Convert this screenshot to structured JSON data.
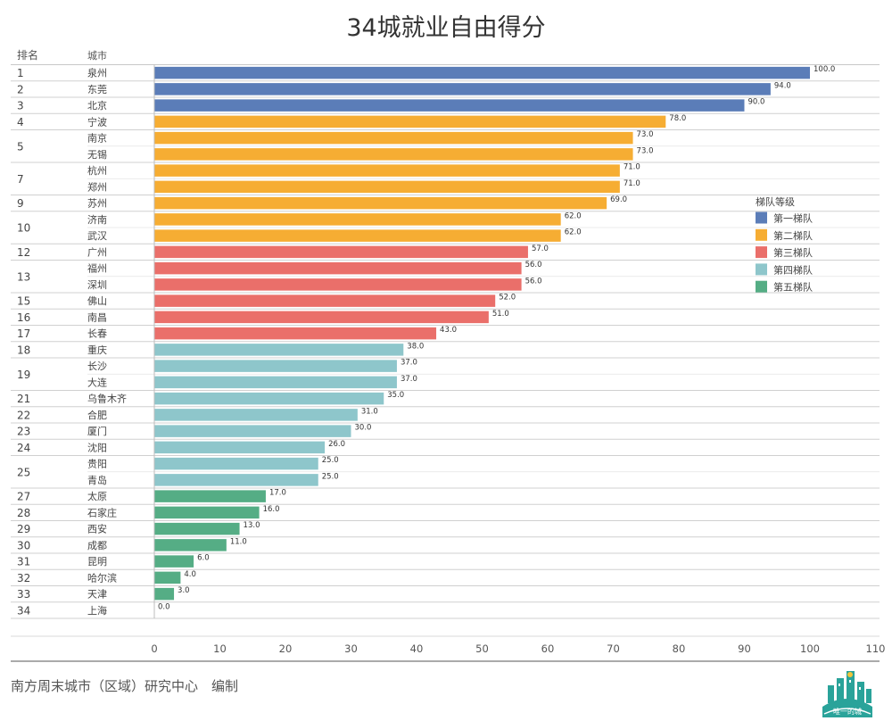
{
  "page": {
    "footer": "南方周末城市（区域）研究中心　编制",
    "logo_text": "唯一的城"
  },
  "chart_data": {
    "type": "bar",
    "orientation": "horizontal",
    "title": "34城就业自由得分",
    "columns": [
      "排名",
      "城市"
    ],
    "xlim": [
      0,
      110
    ],
    "xticks": [
      0,
      10,
      20,
      30,
      40,
      50,
      60,
      70,
      80,
      90,
      100,
      110
    ],
    "legend": {
      "title": "梯队等级",
      "placement": "right",
      "items": [
        {
          "name": "第一梯队",
          "color": "#5b7db8"
        },
        {
          "name": "第二梯队",
          "color": "#f6ad33"
        },
        {
          "name": "第三梯队",
          "color": "#ea6f6a"
        },
        {
          "name": "第四梯队",
          "color": "#8ec6cb"
        },
        {
          "name": "第五梯队",
          "color": "#55ad85"
        }
      ]
    },
    "groups": [
      {
        "rank": "1",
        "tier": 0,
        "items": [
          {
            "city": "泉州",
            "value": 100.0,
            "label": "100.0"
          }
        ]
      },
      {
        "rank": "2",
        "tier": 0,
        "items": [
          {
            "city": "东莞",
            "value": 94.0,
            "label": "94.0"
          }
        ]
      },
      {
        "rank": "3",
        "tier": 0,
        "items": [
          {
            "city": "北京",
            "value": 90.0,
            "label": "90.0"
          }
        ]
      },
      {
        "rank": "4",
        "tier": 1,
        "items": [
          {
            "city": "宁波",
            "value": 78.0,
            "label": "78.0"
          }
        ]
      },
      {
        "rank": "5",
        "tier": 1,
        "items": [
          {
            "city": "南京",
            "value": 73.0,
            "label": "73.0"
          },
          {
            "city": "无锡",
            "value": 73.0,
            "label": "73.0"
          }
        ]
      },
      {
        "rank": "7",
        "tier": 1,
        "items": [
          {
            "city": "杭州",
            "value": 71.0,
            "label": "71.0"
          },
          {
            "city": "郑州",
            "value": 71.0,
            "label": "71.0"
          }
        ]
      },
      {
        "rank": "9",
        "tier": 1,
        "items": [
          {
            "city": "苏州",
            "value": 69.0,
            "label": "69.0"
          }
        ]
      },
      {
        "rank": "10",
        "tier": 1,
        "items": [
          {
            "city": "济南",
            "value": 62.0,
            "label": "62.0"
          },
          {
            "city": "武汉",
            "value": 62.0,
            "label": "62.0"
          }
        ]
      },
      {
        "rank": "12",
        "tier": 2,
        "items": [
          {
            "city": "广州",
            "value": 57.0,
            "label": "57.0"
          }
        ]
      },
      {
        "rank": "13",
        "tier": 2,
        "items": [
          {
            "city": "福州",
            "value": 56.0,
            "label": "56.0"
          },
          {
            "city": "深圳",
            "value": 56.0,
            "label": "56.0"
          }
        ]
      },
      {
        "rank": "15",
        "tier": 2,
        "items": [
          {
            "city": "佛山",
            "value": 52.0,
            "label": "52.0"
          }
        ]
      },
      {
        "rank": "16",
        "tier": 2,
        "items": [
          {
            "city": "南昌",
            "value": 51.0,
            "label": "51.0"
          }
        ]
      },
      {
        "rank": "17",
        "tier": 2,
        "items": [
          {
            "city": "长春",
            "value": 43.0,
            "label": "43.0"
          }
        ]
      },
      {
        "rank": "18",
        "tier": 3,
        "items": [
          {
            "city": "重庆",
            "value": 38.0,
            "label": "38.0"
          }
        ]
      },
      {
        "rank": "19",
        "tier": 3,
        "items": [
          {
            "city": "长沙",
            "value": 37.0,
            "label": "37.0"
          },
          {
            "city": "大连",
            "value": 37.0,
            "label": "37.0"
          }
        ]
      },
      {
        "rank": "21",
        "tier": 3,
        "items": [
          {
            "city": "乌鲁木齐",
            "value": 35.0,
            "label": "35.0"
          }
        ]
      },
      {
        "rank": "22",
        "tier": 3,
        "items": [
          {
            "city": "合肥",
            "value": 31.0,
            "label": "31.0"
          }
        ]
      },
      {
        "rank": "23",
        "tier": 3,
        "items": [
          {
            "city": "厦门",
            "value": 30.0,
            "label": "30.0"
          }
        ]
      },
      {
        "rank": "24",
        "tier": 3,
        "items": [
          {
            "city": "沈阳",
            "value": 26.0,
            "label": "26.0"
          }
        ]
      },
      {
        "rank": "25",
        "tier": 3,
        "items": [
          {
            "city": "贵阳",
            "value": 25.0,
            "label": "25.0"
          },
          {
            "city": "青岛",
            "value": 25.0,
            "label": "25.0"
          }
        ]
      },
      {
        "rank": "27",
        "tier": 4,
        "items": [
          {
            "city": "太原",
            "value": 17.0,
            "label": "17.0"
          }
        ]
      },
      {
        "rank": "28",
        "tier": 4,
        "items": [
          {
            "city": "石家庄",
            "value": 16.0,
            "label": "16.0"
          }
        ]
      },
      {
        "rank": "29",
        "tier": 4,
        "items": [
          {
            "city": "西安",
            "value": 13.0,
            "label": "13.0"
          }
        ]
      },
      {
        "rank": "30",
        "tier": 4,
        "items": [
          {
            "city": "成都",
            "value": 11.0,
            "label": "11.0"
          }
        ]
      },
      {
        "rank": "31",
        "tier": 4,
        "items": [
          {
            "city": "昆明",
            "value": 6.0,
            "label": "6.0"
          }
        ]
      },
      {
        "rank": "32",
        "tier": 4,
        "items": [
          {
            "city": "哈尔滨",
            "value": 4.0,
            "label": "4.0"
          }
        ]
      },
      {
        "rank": "33",
        "tier": 4,
        "items": [
          {
            "city": "天津",
            "value": 3.0,
            "label": "3.0"
          }
        ]
      },
      {
        "rank": "34",
        "tier": 4,
        "items": [
          {
            "city": "上海",
            "value": 0.0,
            "label": "0.0"
          }
        ]
      }
    ]
  }
}
